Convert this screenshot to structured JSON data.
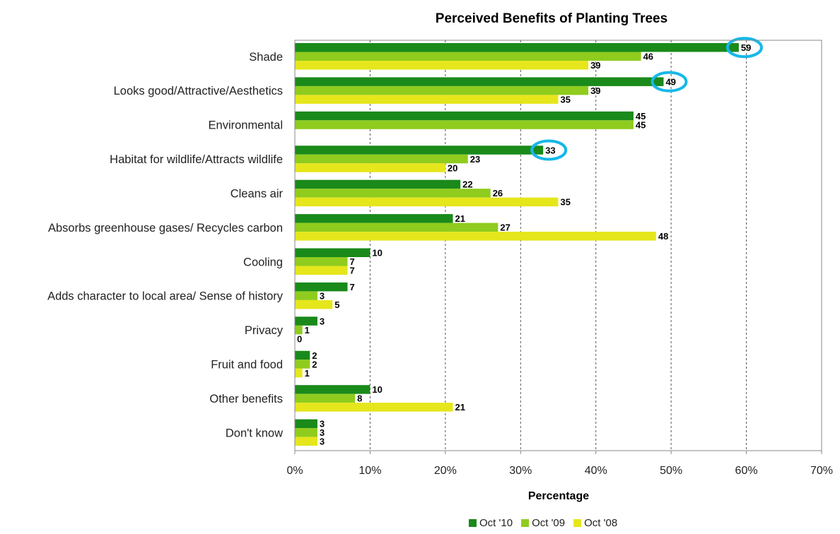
{
  "chart_data": {
    "type": "bar",
    "orientation": "horizontal",
    "title": "Perceived Benefits of Planting Trees",
    "xlabel": "Percentage",
    "ylabel": "",
    "xlim": [
      0,
      70
    ],
    "x_ticks": [
      "0%",
      "10%",
      "20%",
      "30%",
      "40%",
      "50%",
      "60%",
      "70%"
    ],
    "grid": "vertical dashed",
    "legend_position": "bottom-right",
    "categories": [
      "Shade",
      "Looks good/Attractive/Aesthetics",
      "Environmental",
      "Habitat for wildlife/Attracts wildlife",
      "Cleans air",
      "Absorbs greenhouse gases/ Recycles carbon",
      "Cooling",
      "Adds character to local area/ Sense of history",
      "Privacy",
      "Fruit and food",
      "Other benefits",
      "Don't know"
    ],
    "series": [
      {
        "name": "Oct '10",
        "color": "#1a8a1a",
        "values": [
          59,
          49,
          45,
          33,
          22,
          21,
          10,
          7,
          3,
          2,
          10,
          3
        ]
      },
      {
        "name": "Oct '09",
        "color": "#8fcc1e",
        "values": [
          46,
          39,
          45,
          23,
          26,
          27,
          7,
          3,
          1,
          2,
          8,
          3
        ]
      },
      {
        "name": "Oct '08",
        "color": "#e6e61c",
        "values": [
          39,
          35,
          null,
          20,
          35,
          48,
          7,
          5,
          0,
          1,
          21,
          3
        ]
      }
    ],
    "highlighted": [
      {
        "category": "Shade",
        "series": "Oct '10",
        "value": 59
      },
      {
        "category": "Looks good/Attractive/Aesthetics",
        "series": "Oct '10",
        "value": 49
      },
      {
        "category": "Habitat for wildlife/Attracts wildlife",
        "series": "Oct '10",
        "value": 33
      }
    ],
    "highlight_color": "#16b8e8"
  }
}
